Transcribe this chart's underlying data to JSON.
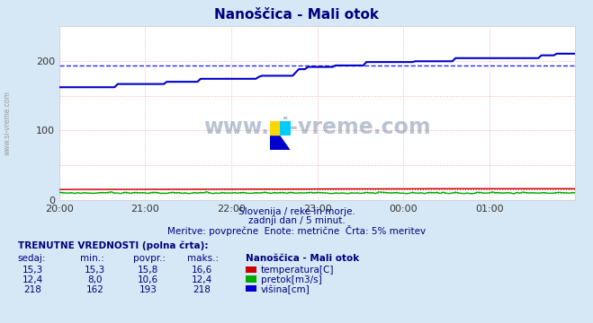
{
  "title": "Nanoščica - Mali otok",
  "title_color": "#000080",
  "bg_color": "#d6e8f5",
  "plot_bg_color": "#ffffff",
  "x_tick_labels": [
    "20:00",
    "21:00",
    "22:00",
    "23:00",
    "00:00",
    "01:00"
  ],
  "ylim": [
    0,
    250
  ],
  "yticks": [
    0,
    100,
    200
  ],
  "grid_color": "#ffaaaa",
  "grid_style": ":",
  "n_points": 169,
  "temp_min": 15.3,
  "temp_max": 16.6,
  "temp_avg": 15.8,
  "temp_color": "#cc0000",
  "pretok_min": 8.0,
  "pretok_max": 12.4,
  "pretok_avg": 10.6,
  "pretok_color": "#00aa00",
  "visina_min": 162,
  "visina_max": 218,
  "visina_avg": 193,
  "visina_color": "#0000cc",
  "visina_avg_color": "#0000ff",
  "subtitle1": "Slovenija / reke in morje.",
  "subtitle2": "zadnji dan / 5 minut.",
  "subtitle3": "Meritve: povprečne  Enote: metrične  Črta: 5% meritev",
  "subtitle_color": "#000080",
  "table_title": "TRENUTNE VREDNOSTI (polna črta):",
  "col_headers": [
    "sedaj:",
    "min.:",
    "povpr.:",
    "maks.:",
    "Nanoščica - Mali otok"
  ],
  "row1": [
    "15,3",
    "15,3",
    "15,8",
    "16,6",
    "temperatura[C]"
  ],
  "row2": [
    "12,4",
    "8,0",
    "10,6",
    "12,4",
    "pretok[m3/s]"
  ],
  "row3": [
    "218",
    "162",
    "193",
    "218",
    "višina[cm]"
  ],
  "watermark": "www.si-vreme.com",
  "watermark_color": "#1a3a6b",
  "sidebar_text": "www.si-vreme.com",
  "sidebar_color": "#888888"
}
